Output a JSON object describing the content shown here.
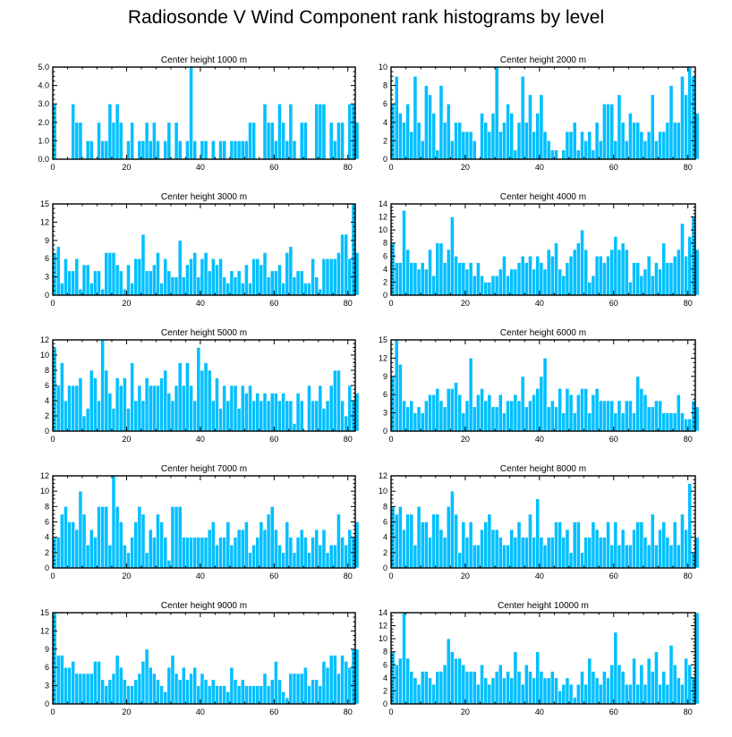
{
  "title": "Radiosonde V Wind Component rank histograms by level",
  "colors": {
    "bar": "#00bfff",
    "bar_edge": "#ffffff",
    "axis": "#000000"
  },
  "chart_data": [
    {
      "type": "bar",
      "title": "Center height 1000 m",
      "xlim": [
        0,
        82
      ],
      "ylim": [
        0,
        5
      ],
      "xticks": [
        0,
        20,
        40,
        60,
        80
      ],
      "yticks": [
        0,
        1,
        2,
        3,
        4,
        5
      ],
      "ytick_labels": [
        "0.0",
        "1.0",
        "2.0",
        "3.0",
        "4.0",
        "5.0"
      ],
      "values": [
        3,
        0,
        0,
        0,
        0,
        3,
        2,
        2,
        0,
        1,
        1,
        0,
        2,
        1,
        1,
        3,
        2,
        3,
        2,
        0,
        1,
        2,
        0,
        1,
        1,
        2,
        1,
        2,
        1,
        0,
        1,
        2,
        0,
        2,
        1,
        0,
        1,
        5,
        1,
        0,
        1,
        1,
        0,
        1,
        0,
        1,
        1,
        0,
        1,
        1,
        1,
        1,
        1,
        2,
        2,
        0,
        0,
        3,
        2,
        2,
        1,
        3,
        2,
        1,
        3,
        1,
        0,
        2,
        2,
        0,
        0,
        3,
        3,
        3,
        0,
        2,
        1,
        2,
        2,
        0,
        3,
        3,
        2
      ]
    },
    {
      "type": "bar",
      "title": "Center height 2000 m",
      "xlim": [
        0,
        82
      ],
      "ylim": [
        0,
        10
      ],
      "xticks": [
        0,
        20,
        40,
        60,
        80
      ],
      "yticks": [
        0,
        2,
        4,
        6,
        8,
        10
      ],
      "values": [
        6,
        9,
        5,
        4,
        6,
        3,
        9,
        4,
        2,
        8,
        7,
        5,
        1,
        8,
        4,
        6,
        2,
        4,
        4,
        3,
        3,
        3,
        2,
        0,
        5,
        4,
        3,
        5,
        10,
        3,
        4,
        6,
        5,
        1,
        4,
        9,
        4,
        7,
        3,
        5,
        7,
        3,
        2,
        1,
        1,
        0,
        1,
        3,
        3,
        4,
        1,
        3,
        2,
        3,
        1,
        4,
        2,
        6,
        6,
        6,
        2,
        7,
        4,
        2,
        5,
        4,
        4,
        3,
        2,
        3,
        7,
        2,
        3,
        3,
        4,
        8,
        4,
        4,
        9,
        7,
        10,
        9,
        5
      ]
    },
    {
      "type": "bar",
      "title": "Center height 3000 m",
      "xlim": [
        0,
        82
      ],
      "ylim": [
        0,
        15
      ],
      "xticks": [
        0,
        20,
        40,
        60,
        80
      ],
      "yticks": [
        0,
        3,
        6,
        9,
        12,
        15
      ],
      "values": [
        7,
        8,
        2,
        6,
        4,
        4,
        6,
        1,
        5,
        5,
        2,
        4,
        4,
        1,
        7,
        7,
        7,
        5,
        4,
        1,
        5,
        2,
        6,
        6,
        10,
        4,
        4,
        5,
        7,
        2,
        6,
        4,
        3,
        3,
        9,
        3,
        5,
        6,
        7,
        3,
        6,
        7,
        4,
        6,
        5,
        6,
        3,
        2,
        4,
        3,
        4,
        2,
        5,
        2,
        6,
        6,
        5,
        7,
        3,
        4,
        4,
        5,
        2,
        7,
        8,
        3,
        4,
        4,
        2,
        2,
        6,
        3,
        1,
        6,
        6,
        6,
        6,
        7,
        10,
        10,
        6,
        15,
        7
      ]
    },
    {
      "type": "bar",
      "title": "Center height 4000 m",
      "xlim": [
        0,
        82
      ],
      "ylim": [
        0,
        14
      ],
      "xticks": [
        0,
        20,
        40,
        60,
        80
      ],
      "yticks": [
        0,
        2,
        4,
        6,
        8,
        10,
        12,
        14
      ],
      "values": [
        8,
        5,
        5,
        13,
        7,
        5,
        5,
        4,
        5,
        4,
        7,
        3,
        8,
        8,
        5,
        7,
        12,
        6,
        5,
        5,
        4,
        5,
        3,
        5,
        3,
        2,
        2,
        3,
        3,
        4,
        6,
        3,
        4,
        4,
        5,
        6,
        5,
        6,
        4,
        6,
        5,
        4,
        7,
        6,
        8,
        4,
        3,
        5,
        6,
        7,
        8,
        10,
        7,
        2,
        3,
        6,
        6,
        5,
        6,
        7,
        9,
        7,
        8,
        7,
        2,
        5,
        5,
        3,
        4,
        6,
        3,
        5,
        4,
        8,
        5,
        5,
        6,
        7,
        11,
        6,
        9,
        12,
        7
      ]
    },
    {
      "type": "bar",
      "title": "Center height 5000 m",
      "xlim": [
        0,
        82
      ],
      "ylim": [
        0,
        12
      ],
      "xticks": [
        0,
        20,
        40,
        60,
        80
      ],
      "yticks": [
        0,
        2,
        4,
        6,
        8,
        10,
        12
      ],
      "values": [
        11,
        6,
        9,
        4,
        6,
        6,
        6,
        7,
        2,
        3,
        8,
        7,
        4,
        12,
        8,
        5,
        3,
        7,
        6,
        7,
        3,
        9,
        4,
        6,
        4,
        7,
        6,
        6,
        6,
        7,
        8,
        5,
        4,
        6,
        9,
        6,
        9,
        6,
        4,
        11,
        8,
        9,
        8,
        4,
        7,
        3,
        6,
        4,
        6,
        6,
        3,
        6,
        5,
        6,
        4,
        5,
        4,
        5,
        4,
        5,
        5,
        4,
        5,
        4,
        4,
        1,
        5,
        4,
        0,
        6,
        4,
        4,
        6,
        3,
        4,
        6,
        8,
        8,
        4,
        2,
        6,
        4,
        5
      ]
    },
    {
      "type": "bar",
      "title": "Center height 6000 m",
      "xlim": [
        0,
        82
      ],
      "ylim": [
        0,
        15
      ],
      "xticks": [
        0,
        20,
        40,
        60,
        80
      ],
      "yticks": [
        0,
        3,
        6,
        9,
        12,
        15
      ],
      "values": [
        9,
        15,
        11,
        5,
        4,
        5,
        3,
        4,
        3,
        5,
        6,
        6,
        7,
        5,
        4,
        7,
        7,
        8,
        6,
        3,
        5,
        12,
        4,
        6,
        7,
        5,
        6,
        4,
        4,
        6,
        3,
        5,
        5,
        6,
        5,
        9,
        4,
        5,
        6,
        7,
        9,
        12,
        4,
        5,
        4,
        7,
        3,
        7,
        6,
        3,
        6,
        7,
        7,
        3,
        6,
        7,
        5,
        5,
        5,
        5,
        3,
        5,
        3,
        5,
        5,
        3,
        9,
        7,
        6,
        4,
        4,
        5,
        5,
        3,
        3,
        3,
        3,
        6,
        3,
        2,
        2,
        5,
        4
      ]
    },
    {
      "type": "bar",
      "title": "Center height 7000 m",
      "xlim": [
        0,
        82
      ],
      "ylim": [
        0,
        12
      ],
      "xticks": [
        0,
        20,
        40,
        60,
        80
      ],
      "yticks": [
        0,
        2,
        4,
        6,
        8,
        10,
        12
      ],
      "values": [
        4,
        4,
        7,
        8,
        6,
        6,
        5,
        10,
        7,
        3,
        5,
        4,
        8,
        8,
        8,
        3,
        12,
        8,
        6,
        3,
        2,
        4,
        6,
        8,
        7,
        2,
        5,
        4,
        7,
        6,
        4,
        1,
        8,
        8,
        8,
        4,
        4,
        4,
        4,
        4,
        4,
        4,
        5,
        6,
        3,
        4,
        4,
        6,
        3,
        4,
        5,
        5,
        6,
        2,
        3,
        4,
        6,
        5,
        7,
        8,
        5,
        3,
        2,
        6,
        4,
        2,
        4,
        5,
        4,
        2,
        4,
        5,
        3,
        5,
        2,
        3,
        3,
        7,
        4,
        3,
        5,
        4,
        6
      ]
    },
    {
      "type": "bar",
      "title": "Center height 8000 m",
      "xlim": [
        0,
        82
      ],
      "ylim": [
        0,
        12
      ],
      "xticks": [
        0,
        20,
        40,
        60,
        80
      ],
      "yticks": [
        0,
        2,
        4,
        6,
        8,
        10,
        12
      ],
      "values": [
        8,
        7,
        8,
        5,
        7,
        7,
        3,
        8,
        6,
        6,
        4,
        7,
        7,
        5,
        4,
        8,
        10,
        7,
        2,
        6,
        4,
        6,
        3,
        3,
        5,
        6,
        7,
        5,
        5,
        4,
        3,
        3,
        5,
        4,
        6,
        4,
        4,
        7,
        4,
        9,
        4,
        3,
        4,
        4,
        6,
        6,
        4,
        5,
        2,
        6,
        6,
        2,
        4,
        4,
        6,
        5,
        4,
        4,
        6,
        3,
        6,
        3,
        5,
        3,
        3,
        5,
        6,
        6,
        4,
        3,
        7,
        3,
        5,
        6,
        4,
        3,
        6,
        3,
        7,
        5,
        11,
        2,
        4
      ]
    },
    {
      "type": "bar",
      "title": "Center height 9000 m",
      "xlim": [
        0,
        82
      ],
      "ylim": [
        0,
        15
      ],
      "xticks": [
        0,
        20,
        40,
        60,
        80
      ],
      "yticks": [
        0,
        3,
        6,
        9,
        12,
        15
      ],
      "values": [
        15,
        8,
        8,
        6,
        6,
        7,
        5,
        5,
        5,
        5,
        5,
        7,
        7,
        4,
        3,
        4,
        5,
        8,
        6,
        4,
        3,
        3,
        4,
        5,
        7,
        9,
        6,
        5,
        4,
        3,
        2,
        6,
        8,
        5,
        4,
        6,
        4,
        5,
        6,
        3,
        5,
        4,
        3,
        4,
        3,
        3,
        3,
        2,
        6,
        4,
        3,
        4,
        3,
        3,
        3,
        3,
        3,
        5,
        3,
        4,
        7,
        4,
        2,
        1,
        5,
        5,
        5,
        5,
        6,
        3,
        4,
        4,
        3,
        7,
        6,
        8,
        8,
        5,
        8,
        7,
        6,
        9,
        9
      ]
    },
    {
      "type": "bar",
      "title": "Center height 10000 m",
      "xlim": [
        0,
        82
      ],
      "ylim": [
        0,
        14
      ],
      "xticks": [
        0,
        20,
        40,
        60,
        80
      ],
      "yticks": [
        0,
        2,
        4,
        6,
        8,
        10,
        12,
        14
      ],
      "values": [
        8,
        6,
        7,
        14,
        7,
        5,
        4,
        3,
        5,
        5,
        4,
        3,
        5,
        5,
        6,
        10,
        8,
        7,
        7,
        6,
        5,
        5,
        5,
        3,
        6,
        4,
        3,
        4,
        5,
        6,
        4,
        5,
        4,
        8,
        5,
        3,
        6,
        5,
        4,
        8,
        5,
        4,
        4,
        5,
        4,
        2,
        3,
        4,
        3,
        1,
        3,
        5,
        3,
        7,
        5,
        4,
        3,
        5,
        4,
        6,
        11,
        6,
        5,
        3,
        3,
        7,
        3,
        6,
        3,
        7,
        5,
        8,
        3,
        5,
        3,
        9,
        6,
        4,
        3,
        7,
        6,
        4,
        14
      ]
    }
  ]
}
